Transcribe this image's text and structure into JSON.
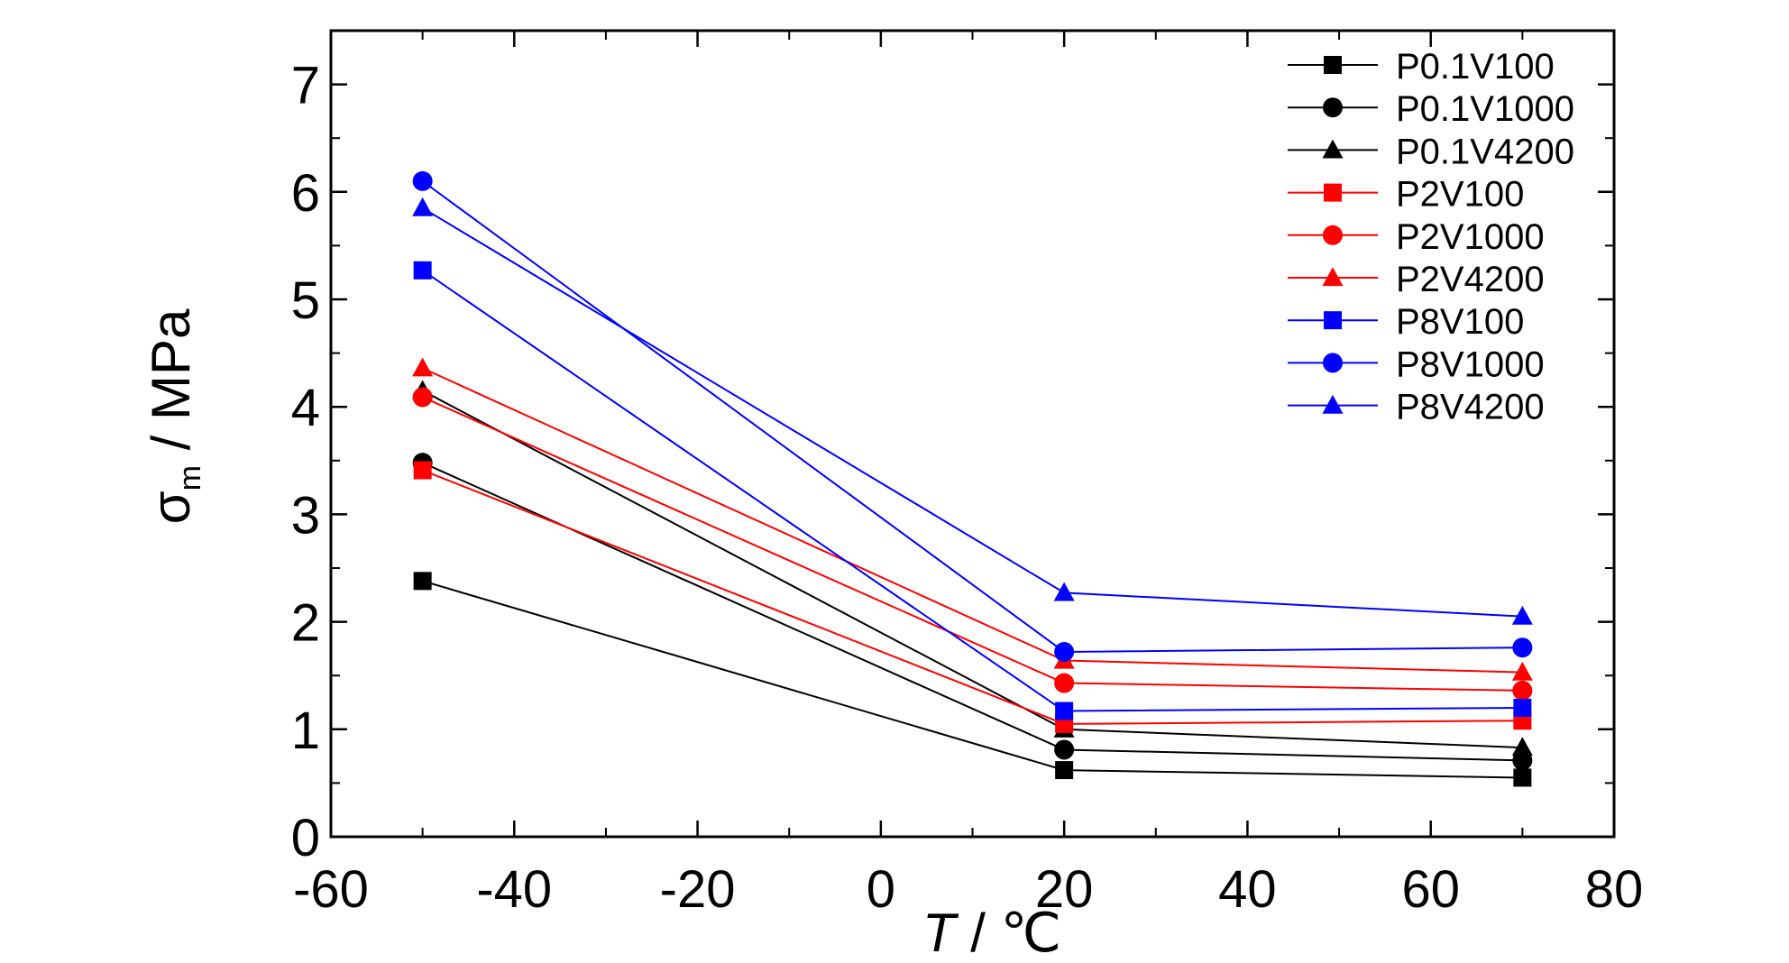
{
  "chart_data": {
    "type": "line",
    "title": "",
    "xlabel": {
      "italic": "T",
      "rest": " / ℃"
    },
    "ylabel": {
      "sigma": "σ",
      "sub": "m",
      "rest": " / MPa"
    },
    "xlim": [
      -60,
      80
    ],
    "ylim": [
      0,
      7.5
    ],
    "x_ticks": [
      -60,
      -40,
      -20,
      0,
      20,
      40,
      60,
      80
    ],
    "y_ticks": [
      0,
      1,
      2,
      3,
      4,
      5,
      6,
      7
    ],
    "x_tick_labels": [
      "-60",
      "-40",
      "-20",
      "0",
      "20",
      "40",
      "60",
      "80"
    ],
    "y_tick_labels": [
      "0",
      "1",
      "2",
      "3",
      "4",
      "5",
      "6",
      "7"
    ],
    "legend_position": "top-right",
    "grid": false,
    "x": [
      -50,
      20,
      70
    ],
    "series": [
      {
        "name": "P0.1V100",
        "color": "#000000",
        "marker": "square",
        "values": [
          2.38,
          0.62,
          0.55
        ]
      },
      {
        "name": "P0.1V1000",
        "color": "#000000",
        "marker": "circle",
        "values": [
          3.48,
          0.81,
          0.71
        ]
      },
      {
        "name": "P0.1V4200",
        "color": "#000000",
        "marker": "triangle",
        "values": [
          4.15,
          1.0,
          0.83
        ]
      },
      {
        "name": "P2V100",
        "color": "#ff0000",
        "marker": "square",
        "values": [
          3.41,
          1.05,
          1.08
        ]
      },
      {
        "name": "P2V1000",
        "color": "#ff0000",
        "marker": "circle",
        "values": [
          4.09,
          1.43,
          1.36
        ]
      },
      {
        "name": "P2V4200",
        "color": "#ff0000",
        "marker": "triangle",
        "values": [
          4.36,
          1.64,
          1.53
        ]
      },
      {
        "name": "P8V100",
        "color": "#0000ff",
        "marker": "square",
        "values": [
          5.27,
          1.17,
          1.2
        ]
      },
      {
        "name": "P8V1000",
        "color": "#0000ff",
        "marker": "circle",
        "values": [
          6.1,
          1.72,
          1.76
        ]
      },
      {
        "name": "P8V4200",
        "color": "#0000ff",
        "marker": "triangle",
        "values": [
          5.85,
          2.27,
          2.05
        ]
      }
    ]
  }
}
